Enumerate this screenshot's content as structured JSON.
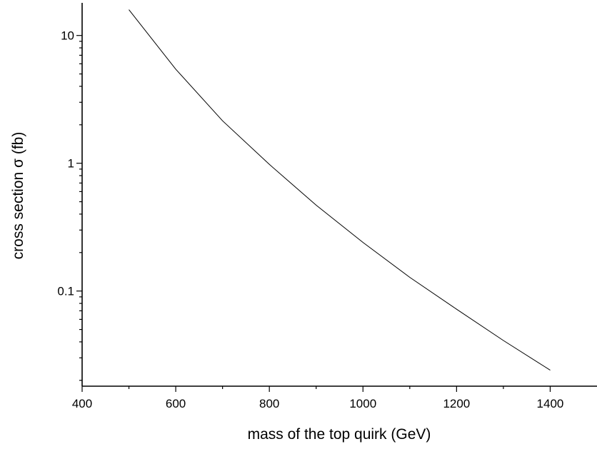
{
  "chart_data": {
    "type": "line",
    "title": "",
    "xlabel": "mass of the top quirk (GeV)",
    "ylabel": "cross section σ (fb)",
    "xlim": [
      400,
      1500
    ],
    "ylim": [
      0.018,
      18
    ],
    "yscale": "log",
    "grid": false,
    "legend": "none",
    "x_ticks": [
      400,
      600,
      800,
      1000,
      1200,
      1400
    ],
    "x_tick_labels": [
      "400",
      "600",
      "800",
      "1000",
      "1200",
      "1400"
    ],
    "y_major_ticks": [
      0.1,
      1,
      10
    ],
    "y_tick_labels": [
      "0.1",
      "1",
      "10"
    ],
    "series": [
      {
        "x": [
          500,
          600,
          700,
          800,
          900,
          1000,
          1100,
          1200,
          1300,
          1400
        ],
        "y": [
          15.9,
          5.45,
          2.15,
          0.98,
          0.47,
          0.24,
          0.128,
          0.072,
          0.041,
          0.024
        ]
      }
    ]
  }
}
